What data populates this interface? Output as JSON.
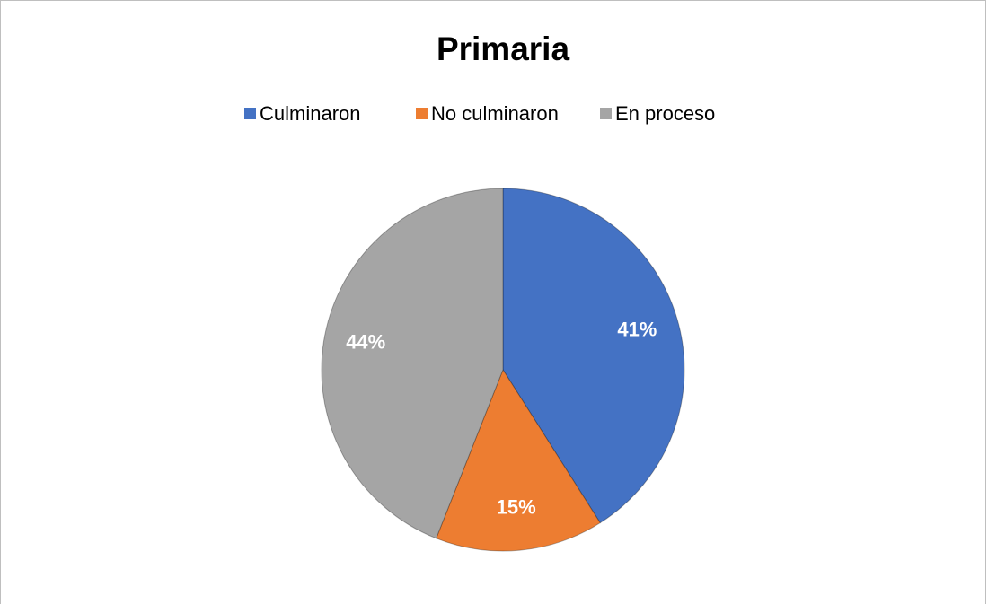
{
  "chart_data": {
    "type": "pie",
    "title": "Primaria",
    "categories": [
      "Culminaron",
      "No culminaron",
      "En proceso"
    ],
    "values": [
      41,
      15,
      44
    ],
    "value_labels": [
      "41%",
      "15%",
      "44%"
    ],
    "colors": [
      "#4472c4",
      "#ed7d31",
      "#a5a5a5"
    ],
    "legend": "top"
  }
}
